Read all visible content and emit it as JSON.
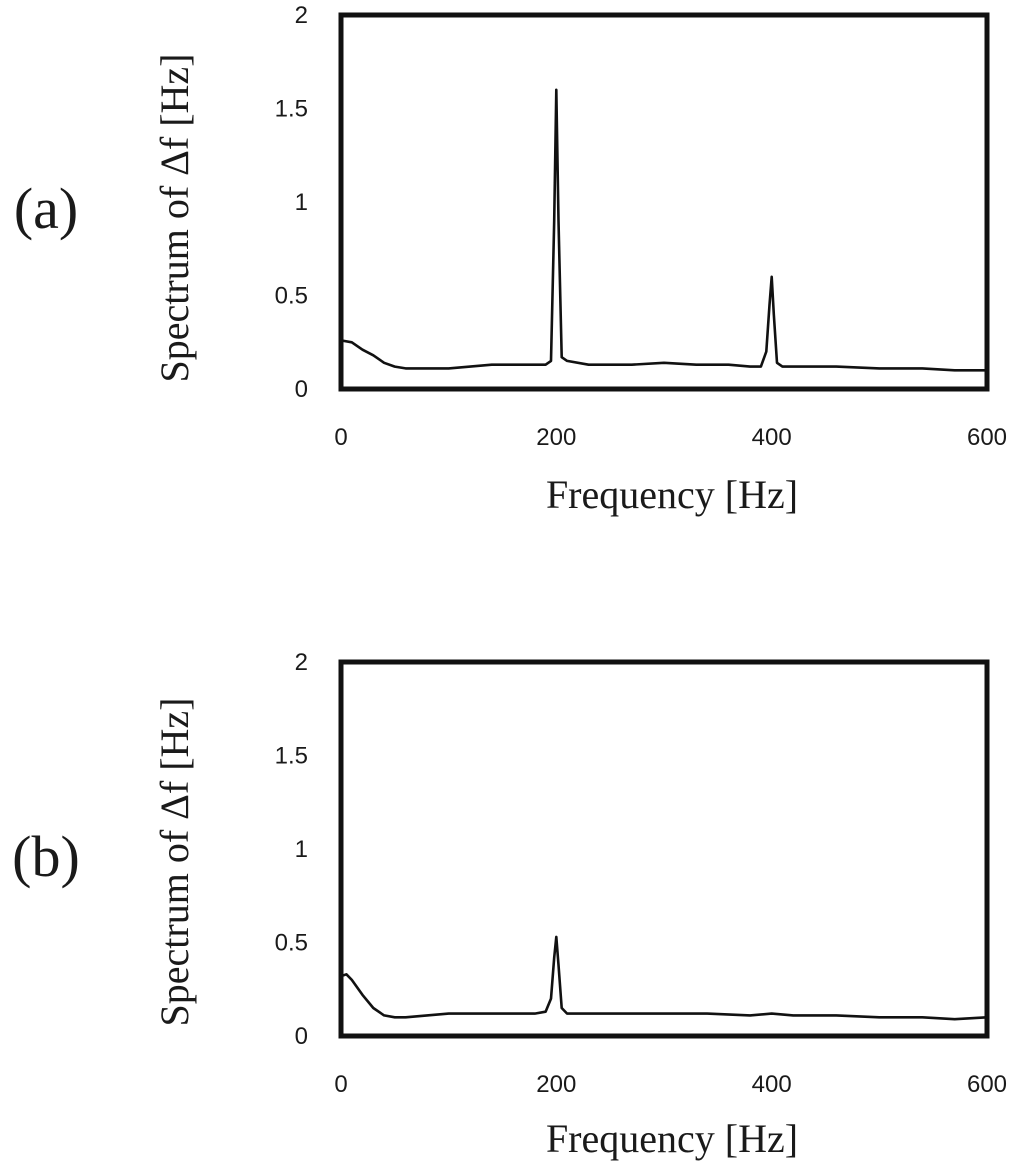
{
  "chart_data": [
    {
      "type": "line",
      "panel_label": "(a)",
      "xlabel": "Frequency [Hz]",
      "ylabel": "Spectrum of Δf [Hz]",
      "xlim": [
        0,
        600
      ],
      "ylim": [
        0,
        2
      ],
      "x_ticks": [
        "0",
        "200",
        "400",
        "600"
      ],
      "y_ticks": [
        "0",
        "0.5",
        "1",
        "1.5",
        "2"
      ],
      "grid": false,
      "legend": "none",
      "series": [
        {
          "x": [
            0,
            10,
            20,
            30,
            40,
            50,
            60,
            80,
            100,
            120,
            140,
            160,
            180,
            190,
            195,
            198,
            200,
            202,
            205,
            210,
            230,
            250,
            270,
            300,
            330,
            360,
            380,
            390,
            395,
            398,
            400,
            402,
            405,
            410,
            430,
            460,
            500,
            540,
            570,
            600
          ],
          "y": [
            0.26,
            0.25,
            0.21,
            0.18,
            0.14,
            0.12,
            0.11,
            0.11,
            0.11,
            0.12,
            0.13,
            0.13,
            0.13,
            0.13,
            0.15,
            0.9,
            1.6,
            0.9,
            0.17,
            0.15,
            0.13,
            0.13,
            0.13,
            0.14,
            0.13,
            0.13,
            0.12,
            0.12,
            0.2,
            0.45,
            0.6,
            0.4,
            0.14,
            0.12,
            0.12,
            0.12,
            0.11,
            0.11,
            0.1,
            0.1
          ]
        }
      ]
    },
    {
      "type": "line",
      "panel_label": "(b)",
      "xlabel": "Frequency [Hz]",
      "ylabel": "Spectrum of Δf [Hz]",
      "xlim": [
        0,
        600
      ],
      "ylim": [
        0,
        2
      ],
      "x_ticks": [
        "0",
        "200",
        "400",
        "600"
      ],
      "y_ticks": [
        "0",
        "0.5",
        "1",
        "1.5",
        "2"
      ],
      "grid": false,
      "legend": "none",
      "series": [
        {
          "x": [
            0,
            5,
            10,
            20,
            30,
            40,
            50,
            60,
            80,
            100,
            120,
            140,
            160,
            180,
            190,
            195,
            198,
            200,
            202,
            205,
            210,
            230,
            260,
            300,
            340,
            380,
            400,
            420,
            460,
            500,
            540,
            570,
            600
          ],
          "y": [
            0.32,
            0.33,
            0.3,
            0.22,
            0.15,
            0.11,
            0.1,
            0.1,
            0.11,
            0.12,
            0.12,
            0.12,
            0.12,
            0.12,
            0.13,
            0.2,
            0.42,
            0.53,
            0.38,
            0.15,
            0.12,
            0.12,
            0.12,
            0.12,
            0.12,
            0.11,
            0.12,
            0.11,
            0.11,
            0.1,
            0.1,
            0.09,
            0.1
          ]
        }
      ]
    }
  ]
}
